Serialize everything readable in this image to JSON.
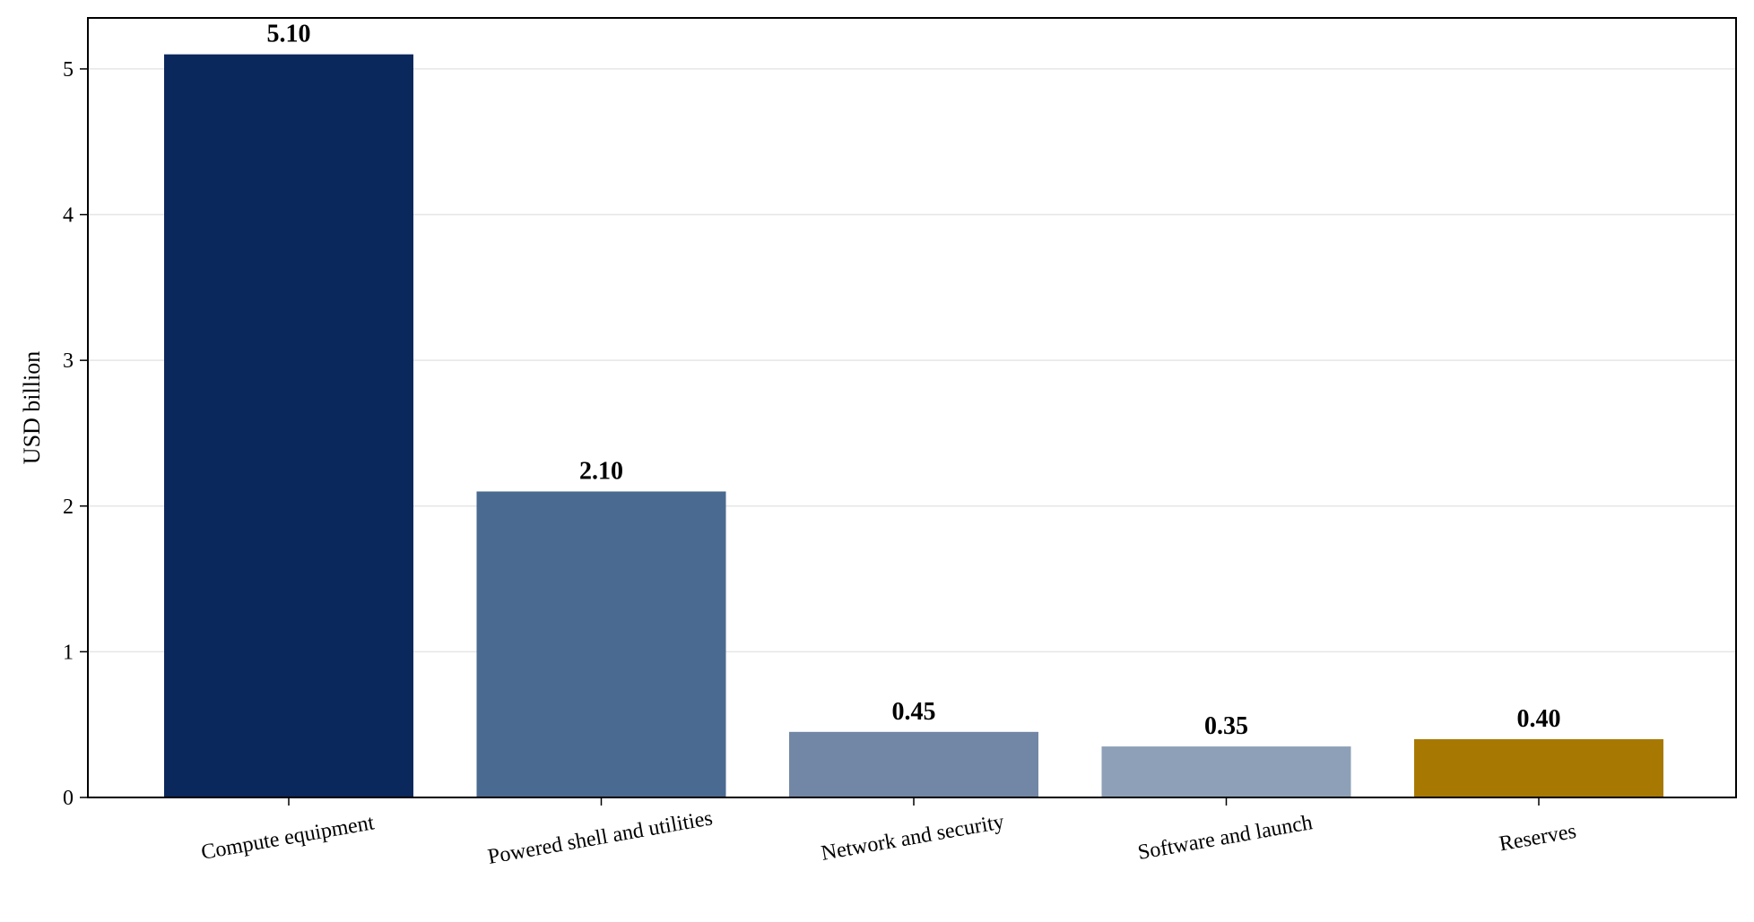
{
  "chart_data": {
    "type": "bar",
    "ylabel": "USD billion",
    "xlabel": "",
    "ylim": [
      0,
      5.35
    ],
    "yticks": [
      0,
      1,
      2,
      3,
      4,
      5
    ],
    "grid": "horizontal",
    "categories": [
      "Compute equipment",
      "Powered shell and utilities",
      "Network and security",
      "Software and launch",
      "Reserves"
    ],
    "values": [
      5.1,
      2.1,
      0.45,
      0.35,
      0.4
    ],
    "data_labels": [
      "5.10",
      "2.10",
      "0.45",
      "0.35",
      "0.40"
    ],
    "colors": [
      "#0b285d",
      "#4a6a91",
      "#7287a6",
      "#8ea0b8",
      "#a87902"
    ]
  }
}
